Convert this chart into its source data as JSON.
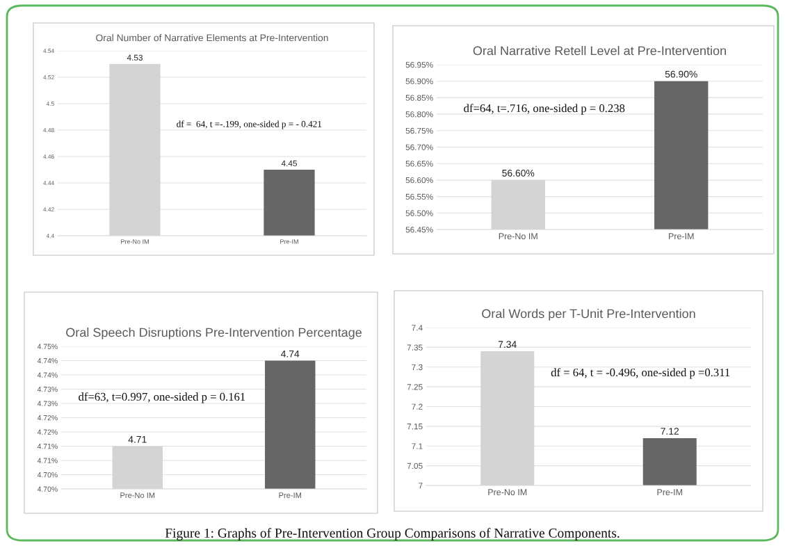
{
  "chart_data": [
    {
      "type": "bar",
      "title": "Oral Number of Narrative Elements at Pre-Intervention",
      "categories": [
        "Pre-No IM",
        "Pre-IM"
      ],
      "values": [
        4.53,
        4.45
      ],
      "colors": [
        "#d4d4d4",
        "#666666"
      ],
      "value_labels": [
        "4.53",
        "4.45"
      ],
      "ylim": [
        4.4,
        4.54
      ],
      "yticks": [
        4.4,
        4.42,
        4.44,
        4.46,
        4.48,
        4.5,
        4.52,
        4.54
      ],
      "grid": "y",
      "annotations": [
        "df =  64, t =-.199, one-sided p = - 0.421"
      ]
    },
    {
      "type": "bar",
      "title": "Oral Narrative Retell Level at Pre-Intervention",
      "categories": [
        "Pre-No IM",
        "Pre-IM"
      ],
      "values": [
        56.6,
        56.9
      ],
      "colors": [
        "#d4d4d4",
        "#666666"
      ],
      "value_labels": [
        "56.60%",
        "56.90%"
      ],
      "ylim": [
        56.45,
        56.95
      ],
      "yticks": [
        {
          "value": 56.45,
          "label": "56.45%"
        },
        {
          "value": 56.5,
          "label": "56.50%"
        },
        {
          "value": 56.55,
          "label": "56.55%"
        },
        {
          "value": 56.6,
          "label": "56.60%"
        },
        {
          "value": 56.65,
          "label": "56.65%"
        },
        {
          "value": 56.7,
          "label": "56.70%"
        },
        {
          "value": 56.75,
          "label": "56.75%"
        },
        {
          "value": 56.8,
          "label": "56.80%"
        },
        {
          "value": 56.85,
          "label": "56.85%"
        },
        {
          "value": 56.9,
          "label": "56.90%"
        },
        {
          "value": 56.95,
          "label": "56.95%"
        }
      ],
      "grid": "y",
      "annotations": [
        "df=64, t=.716, one-sided p = 0.238"
      ]
    },
    {
      "type": "bar",
      "title": "Oral Speech Disruptions Pre-Intervention Percentage",
      "categories": [
        "Pre-No IM",
        "Pre-IM"
      ],
      "values": [
        4.715,
        4.745
      ],
      "colors": [
        "#d4d4d4",
        "#666666"
      ],
      "value_labels": [
        "4.71",
        "4.74"
      ],
      "ylim": [
        4.7,
        4.75
      ],
      "yticks": [
        {
          "value": 4.7,
          "label": "4.70%"
        },
        {
          "value": 4.705,
          "label": "4.70%"
        },
        {
          "value": 4.71,
          "label": "4.71%"
        },
        {
          "value": 4.715,
          "label": "4.71%"
        },
        {
          "value": 4.72,
          "label": "4.72%"
        },
        {
          "value": 4.725,
          "label": "4.72%"
        },
        {
          "value": 4.73,
          "label": "4.73%"
        },
        {
          "value": 4.735,
          "label": "4.73%"
        },
        {
          "value": 4.74,
          "label": "4.74%"
        },
        {
          "value": 4.745,
          "label": "4.74%"
        },
        {
          "value": 4.75,
          "label": "4.75%"
        }
      ],
      "grid": "y",
      "annotations": [
        "df=63, t=0.997, one-sided p = 0.161"
      ]
    },
    {
      "type": "bar",
      "title": "Oral Words per T-Unit Pre-Intervention",
      "categories": [
        "Pre-No IM",
        "Pre-IM"
      ],
      "values": [
        7.34,
        7.12
      ],
      "colors": [
        "#d4d4d4",
        "#666666"
      ],
      "value_labels": [
        "7.34",
        "7.12"
      ],
      "ylim": [
        7,
        7.4
      ],
      "yticks": [
        7,
        7.05,
        7.1,
        7.15,
        7.2,
        7.25,
        7.3,
        7.35,
        7.4
      ],
      "grid": "y",
      "annotations": [
        "df = 64, t = -0.496, one-sided p =0.311",
        "Figure 1: Graphs of Pre-Intervention Group Comparisons of Narrative Components."
      ]
    }
  ]
}
